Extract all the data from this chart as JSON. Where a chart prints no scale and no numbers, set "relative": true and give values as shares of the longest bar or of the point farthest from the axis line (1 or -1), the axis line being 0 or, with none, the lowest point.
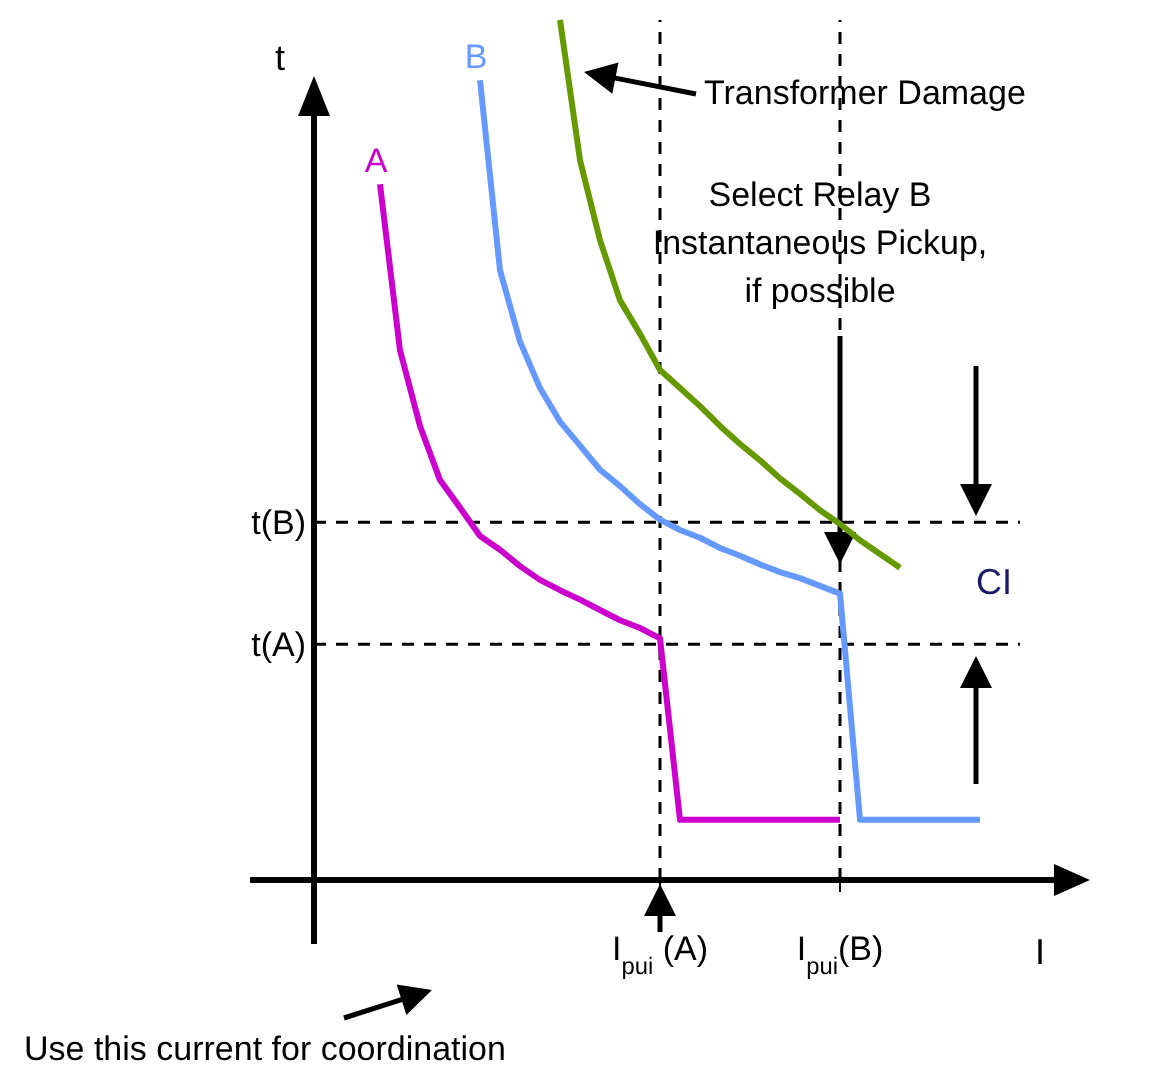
{
  "chart_data": {
    "type": "line",
    "xlabel": "I",
    "ylabel": "t",
    "relative": true,
    "categories": [
      null,
      null,
      null,
      null,
      null,
      null,
      null,
      null,
      null,
      null,
      null,
      null,
      null,
      null,
      null,
      null,
      "I$_{pui}$ (A)",
      null,
      null,
      null,
      null,
      null,
      null,
      null,
      null,
      "I$_{pui}$(B)",
      null,
      null,
      null,
      null,
      null,
      null,
      null,
      null
    ],
    "grid": "x",
    "legend": false,
    "marker": "none",
    "line_style": "solid",
    "series": [
      {
        "name": "A",
        "color": "#cc00cc",
        "values": [
          null,
          null,
          0.809,
          0.616,
          0.528,
          0.465,
          0.433,
          0.4,
          0.384,
          0.365,
          0.349,
          0.337,
          0.326,
          0.314,
          0.302,
          0.293,
          0.281,
          0.07,
          0.07,
          0.07,
          0.07,
          0.07,
          0.07,
          0.07,
          0.07,
          0.07,
          null,
          null,
          null,
          null,
          null,
          null,
          null,
          null
        ]
      },
      {
        "name": "B",
        "color": "#6699ff",
        "values": [
          null,
          null,
          null,
          null,
          null,
          null,
          null,
          0.93,
          0.709,
          0.626,
          0.572,
          0.533,
          0.505,
          0.477,
          0.458,
          0.437,
          0.419,
          0.407,
          0.398,
          0.386,
          0.377,
          0.367,
          0.358,
          0.351,
          0.342,
          0.333,
          0.07,
          0.07,
          0.07,
          0.07,
          0.07,
          0.07,
          0.07,
          null
        ]
      },
      {
        "color": "#669900",
        "values": [
          null,
          null,
          null,
          null,
          null,
          null,
          null,
          null,
          null,
          null,
          null,
          1,
          0.837,
          0.744,
          0.674,
          0.635,
          0.593,
          0.572,
          0.551,
          0.528,
          0.507,
          0.488,
          0.467,
          0.449,
          0.43,
          0.414,
          0.395,
          0.379,
          0.363,
          null,
          null,
          null,
          null,
          null
        ]
      }
    ],
    "ref_lines": [
      {
        "axis": "y",
        "value": 0.274,
        "label": "t(A)",
        "color": "#000000",
        "line_style": "dashed"
      },
      {
        "axis": "y",
        "value": 0.416,
        "label": "t(B)",
        "color": "#000000",
        "line_style": "dashed"
      }
    ],
    "annotations": [
      "Transformer Damage",
      "Select Relay B\nInstantaneous Pickup,\nif possible",
      "CI",
      "Use this current for coordination"
    ]
  }
}
